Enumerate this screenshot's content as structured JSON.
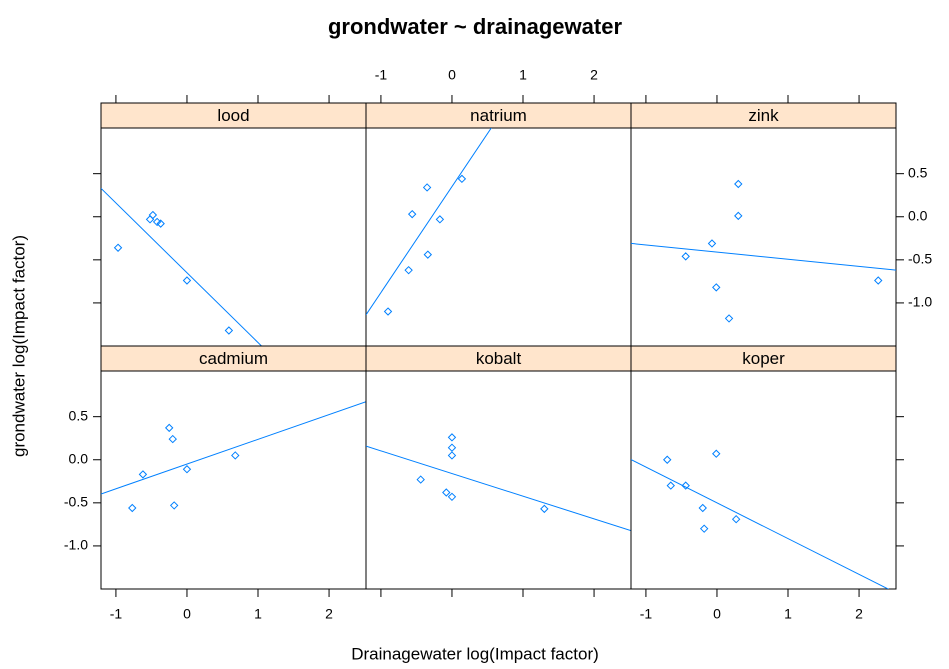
{
  "chart_data": {
    "type": "scatter",
    "title": "grondwater ~ drainagewater",
    "x_label": "Drainagewater  log(Impact factor)",
    "y_label": "grondwater log(Impact factor)",
    "xlim": [
      -1.21,
      2.52
    ],
    "ylim": [
      -1.5,
      1.03
    ],
    "xticks": [
      -1,
      0,
      1,
      2
    ],
    "yticks": [
      {
        "value": -1.0,
        "label": "-1.0"
      },
      {
        "value": -0.5,
        "label": "-0.5"
      },
      {
        "value": 0.0,
        "label": "0.0"
      },
      {
        "value": 0.5,
        "label": "0.5"
      }
    ],
    "color": "#0080ff",
    "strip_color": "#ffe5cc",
    "panels": [
      {
        "name": "lood",
        "x": [
          -0.97,
          -0.52,
          -0.48,
          -0.42,
          -0.37,
          0.0,
          0.59
        ],
        "y": [
          -0.36,
          -0.03,
          0.02,
          -0.06,
          -0.08,
          -0.74,
          -1.32
        ],
        "fit": {
          "intercept": -0.65,
          "slope": -0.81
        }
      },
      {
        "name": "natrium",
        "x": [
          -0.9,
          -0.61,
          -0.56,
          -0.35,
          -0.34,
          -0.17,
          0.14
        ],
        "y": [
          -1.1,
          -0.62,
          0.03,
          0.34,
          -0.44,
          -0.03,
          0.44
        ],
        "fit": {
          "intercept": 0.35,
          "slope": 1.23
        }
      },
      {
        "name": "zink",
        "x": [
          -0.44,
          -0.07,
          -0.01,
          0.3,
          0.3,
          0.17,
          2.27
        ],
        "y": [
          -0.46,
          -0.31,
          -0.82,
          0.38,
          0.01,
          -1.18,
          -0.74
        ],
        "fit": {
          "intercept": -0.41,
          "slope": -0.083
        }
      },
      {
        "name": "cadmium",
        "x": [
          -0.77,
          -0.62,
          -0.25,
          -0.2,
          -0.18,
          0.0,
          0.68
        ],
        "y": [
          -0.56,
          -0.17,
          0.37,
          0.24,
          -0.53,
          -0.11,
          0.05
        ],
        "fit": {
          "intercept": -0.05,
          "slope": 0.287
        }
      },
      {
        "name": "kobalt",
        "x": [
          -0.44,
          -0.08,
          0.0,
          0.0,
          0.0,
          0.0,
          1.3
        ],
        "y": [
          -0.23,
          -0.38,
          -0.43,
          0.26,
          0.14,
          0.05,
          -0.57
        ],
        "fit": {
          "intercept": -0.16,
          "slope": -0.263
        }
      },
      {
        "name": "koper",
        "x": [
          -0.7,
          -0.65,
          -0.44,
          -0.2,
          -0.18,
          -0.01,
          0.27
        ],
        "y": [
          0.0,
          -0.3,
          -0.3,
          -0.56,
          -0.8,
          0.07,
          -0.69
        ],
        "fit": {
          "intercept": -0.5,
          "slope": -0.415
        }
      }
    ]
  }
}
